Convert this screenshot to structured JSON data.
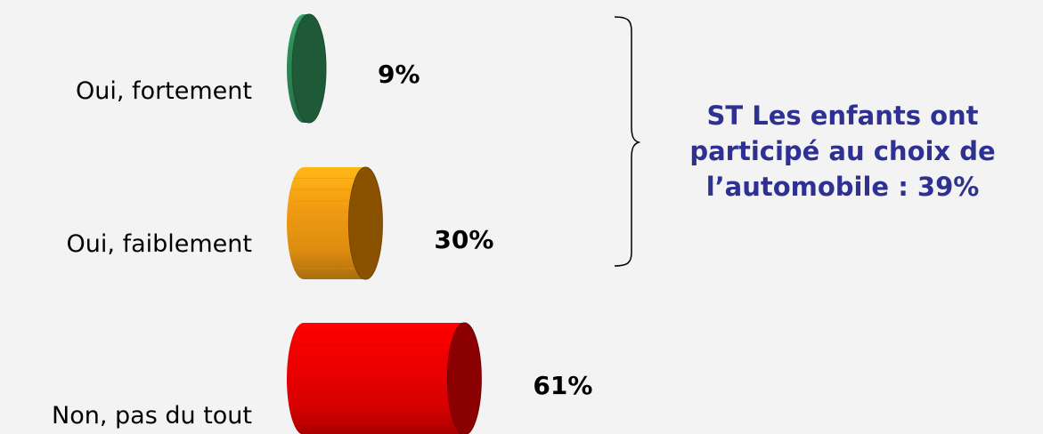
{
  "chart_data": {
    "type": "bar",
    "orientation": "horizontal",
    "style": "3d-cylinder",
    "categories": [
      "Oui, fortement",
      "Oui, faiblement",
      "Non, pas du tout"
    ],
    "values": [
      9,
      30,
      61
    ],
    "value_labels": [
      "9%",
      "30%",
      "61%"
    ],
    "unit": "%",
    "colors": [
      "#2e8b57",
      "#f39c12",
      "#ee0000"
    ],
    "end_colors": [
      "#1e5a38",
      "#8a5200",
      "#8b0000"
    ],
    "annotation": {
      "brace_groups": [
        "Oui, fortement",
        "Oui, faiblement"
      ],
      "lines": [
        "ST Les enfants ont",
        "participé au choix de",
        "l’automobile : 39%"
      ],
      "color": "#2e3192"
    }
  }
}
